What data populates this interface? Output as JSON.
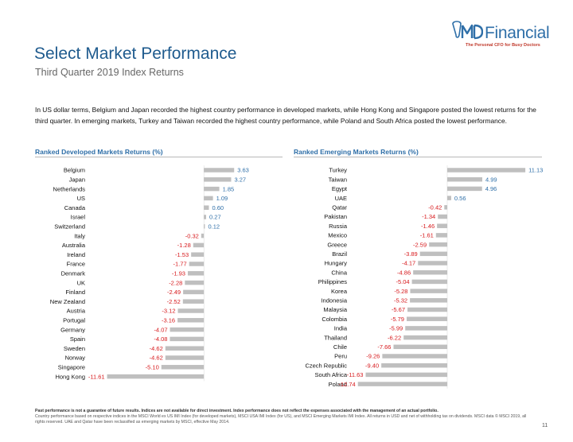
{
  "brand": {
    "logo_name": "Financial",
    "tagline": "The Personal CFO for Busy Doctors",
    "accent": "#2f6fa8",
    "negative_color": "#d7191c"
  },
  "header": {
    "title": "Select Market Performance",
    "subtitle": "Third Quarter 2019 Index Returns"
  },
  "intro_text": "In US dollar terms, Belgium and Japan recorded the highest country performance in developed markets, while Hong Kong and Singapore posted the lowest returns for the third quarter. In emerging markets, Turkey and Taiwan recorded the highest country performance, while Poland and South Africa posted the lowest performance.",
  "chart_data": [
    {
      "type": "bar",
      "orientation": "horizontal",
      "title": "Ranked Developed Markets Returns (%)",
      "categories": [
        "Belgium",
        "Japan",
        "Netherlands",
        "US",
        "Canada",
        "Israel",
        "Switzerland",
        "Italy",
        "Australia",
        "Ireland",
        "France",
        "Denmark",
        "UK",
        "Finland",
        "New Zealand",
        "Austria",
        "Portugal",
        "Germany",
        "Spain",
        "Sweden",
        "Norway",
        "Singapore",
        "Hong Kong"
      ],
      "values": [
        3.63,
        3.27,
        1.85,
        1.09,
        0.6,
        0.27,
        0.12,
        -0.32,
        -1.28,
        -1.53,
        -1.77,
        -1.93,
        -2.28,
        -2.49,
        -2.52,
        -3.12,
        -3.16,
        -4.07,
        -4.08,
        -4.62,
        -4.62,
        -5.1,
        -11.61
      ],
      "labels": [
        "3.63",
        "3.27",
        "1.85",
        "1.09",
        "0.60",
        "0.27",
        "0.12",
        "-0.32",
        "-1.28",
        "-1.53",
        "-1.77",
        "-1.93",
        "-2.28",
        "-2.49",
        "-2.52",
        "-3.12",
        "-3.16",
        "-4.07",
        "-4.08",
        "-4.62",
        "-4.62",
        "-5.10",
        "-11.61"
      ],
      "xlim": [
        -13,
        8
      ]
    },
    {
      "type": "bar",
      "orientation": "horizontal",
      "title": "Ranked Emerging Markets Returns (%)",
      "categories": [
        "Turkey",
        "Taiwan",
        "Egypt",
        "UAE",
        "Qatar",
        "Pakistan",
        "Russia",
        "Mexico",
        "Greece",
        "Brazil",
        "Hungary",
        "China",
        "Philippines",
        "Korea",
        "Indonesia",
        "Malaysia",
        "Colombia",
        "India",
        "Thailand",
        "Chile",
        "Peru",
        "Czech Republic",
        "South Africa",
        "Poland"
      ],
      "values": [
        11.13,
        4.99,
        4.96,
        0.56,
        -0.42,
        -1.34,
        -1.46,
        -1.61,
        -2.59,
        -3.89,
        -4.17,
        -4.86,
        -5.04,
        -5.28,
        -5.32,
        -5.67,
        -5.79,
        -5.99,
        -6.22,
        -7.66,
        -9.26,
        -9.4,
        -11.63,
        -12.74
      ],
      "labels": [
        "11.13",
        "4.99",
        "4.96",
        "0.56",
        "-0.42",
        "-1.34",
        "-1.46",
        "-1.61",
        "-2.59",
        "-3.89",
        "-4.17",
        "-4.86",
        "-5.04",
        "-5.28",
        "-5.32",
        "-5.67",
        "-5.79",
        "-5.99",
        "-6.22",
        "-7.66",
        "-9.26",
        "-9.40",
        "-11.63",
        "-12.74"
      ],
      "xlim": [
        -13.5,
        13.5
      ]
    }
  ],
  "footer": {
    "disclaimer": "Past performance is not a guarantee of future results. Indices are not available for direct investment. Index performance does not reflect the expenses associated with the management of an actual portfolio.",
    "notes": "Country performance based on respective indices in the MSCI World ex US IMI Index (for developed markets), MSCI USA IMI Index (for US), and MSCI Emerging Markets IMI Index. All returns in USD and net of withholding tax on dividends. MSCI data © MSCI 2019, all rights reserved. UAE and Qatar have been reclassified as emerging markets by MSCI, effective May 2014.",
    "page_number": "11"
  }
}
